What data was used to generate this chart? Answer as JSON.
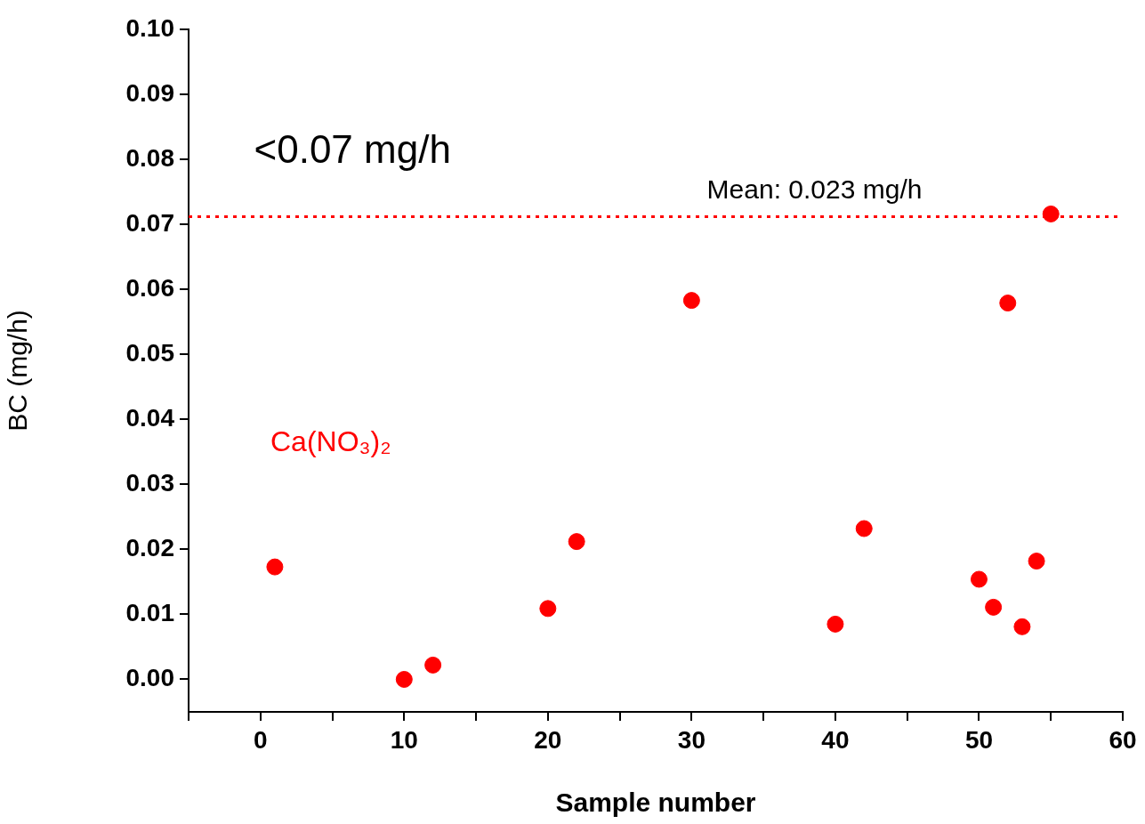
{
  "chart_data": {
    "type": "scatter",
    "xlabel": "Sample number",
    "ylabel": "BC (mg/h)",
    "annotations": [
      "<0.07 mg/h",
      "Mean: 0.023 mg/h"
    ],
    "series": [
      {
        "name": "Ca(NO₃)₂",
        "color": "#ff0000",
        "x": [
          1,
          10,
          12,
          20,
          22,
          30,
          40,
          42,
          50,
          51,
          52,
          53,
          54,
          55
        ],
        "values": [
          0.0173,
          0.0,
          0.0022,
          0.0109,
          0.0212,
          0.0583,
          0.0085,
          0.0232,
          0.0154,
          0.0111,
          0.0579,
          0.0081,
          0.0182,
          0.0716
        ]
      }
    ],
    "marker": "circle",
    "ref_lines": [
      {
        "axis": "y",
        "value": 0.0712,
        "color": "#ff0000",
        "line_style": "dotted"
      }
    ],
    "xlim": [
      -5,
      60
    ],
    "xticks": [
      {
        "value": -5,
        "label": null
      },
      0,
      {
        "value": 5,
        "label": null
      },
      10,
      {
        "value": 15,
        "label": null
      },
      20,
      {
        "value": 25,
        "label": null
      },
      30,
      {
        "value": 35,
        "label": null
      },
      40,
      {
        "value": 45,
        "label": null
      },
      50,
      {
        "value": 55,
        "label": null
      },
      60
    ],
    "ylim": [
      -0.005,
      0.1
    ],
    "yticks": [
      {
        "value": 0,
        "label": "0.00"
      },
      0.01,
      0.02,
      0.03,
      0.04,
      0.05,
      0.06,
      0.07,
      0.08,
      0.09,
      {
        "value": 0.1,
        "label": "0.10"
      }
    ],
    "grid": false
  }
}
